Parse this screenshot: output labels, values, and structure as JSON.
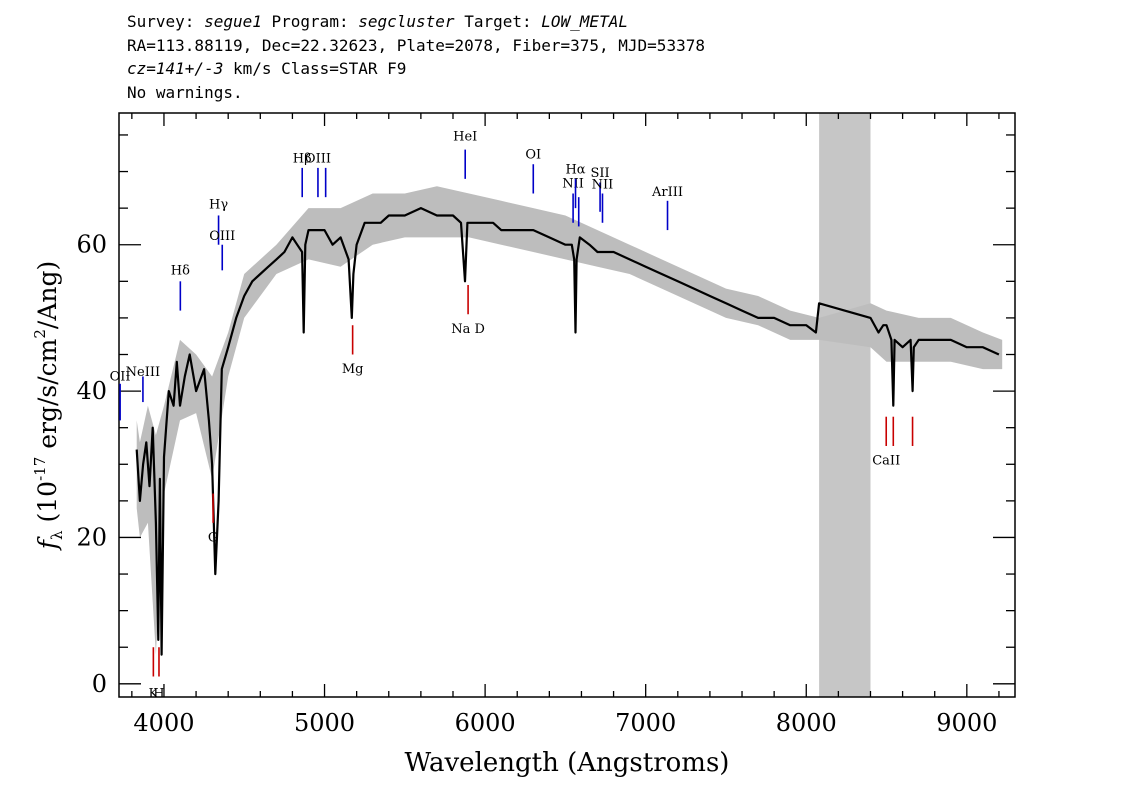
{
  "header": {
    "survey_label": "Survey:",
    "survey": "segue1",
    "program_label": "Program:",
    "program": "segcluster",
    "target_label": "Target:",
    "target": "LOW_METAL",
    "line2": "RA=113.88119, Dec=22.32623, Plate=2078, Fiber=375, MJD=53378",
    "cz": "cz=141+/-3",
    "line3_rest": "km/s Class=STAR F9",
    "line4": "No warnings."
  },
  "chart_data": {
    "type": "line",
    "title": "",
    "xlabel": "Wavelength (Angstroms)",
    "ylabel_prefix": "f",
    "ylabel_sub": "λ",
    "ylabel_unit": "(10",
    "ylabel_exp": "-17",
    "ylabel_rest": "erg/s/cm",
    "ylabel_exp2": "2",
    "ylabel_tail": "/Ang)",
    "xlim": [
      3720,
      9300
    ],
    "ylim": [
      -1.8,
      78
    ],
    "xticks": [
      "4000",
      "5000",
      "6000",
      "7000",
      "8000",
      "9000"
    ],
    "yticks": [
      "0",
      "20",
      "40",
      "60"
    ],
    "masked_region": [
      8080,
      8400
    ],
    "masked_color": "#c6c6c6",
    "flux_color": "#000000",
    "error_color": "#bdbdbd",
    "emission_color": "#0000c8",
    "absorption_color": "#c80000",
    "spectrum": {
      "x": [
        3830,
        3850,
        3870,
        3890,
        3910,
        3930,
        3950,
        3965,
        3975,
        3985,
        4000,
        4030,
        4060,
        4080,
        4100,
        4130,
        4160,
        4200,
        4250,
        4280,
        4300,
        4320,
        4340,
        4360,
        4400,
        4450,
        4500,
        4550,
        4600,
        4650,
        4700,
        4750,
        4800,
        4830,
        4860,
        4870,
        4880,
        4900,
        4950,
        5000,
        5050,
        5100,
        5150,
        5170,
        5180,
        5200,
        5250,
        5300,
        5350,
        5400,
        5500,
        5600,
        5700,
        5800,
        5850,
        5875,
        5890,
        5900,
        5950,
        6000,
        6050,
        6100,
        6200,
        6300,
        6400,
        6500,
        6540,
        6555,
        6563,
        6570,
        6590,
        6650,
        6700,
        6800,
        6900,
        7000,
        7100,
        7200,
        7300,
        7400,
        7500,
        7600,
        7700,
        7800,
        7900,
        8000,
        8060,
        8080,
        8400,
        8450,
        8480,
        8500,
        8530,
        8542,
        8550,
        8600,
        8650,
        8662,
        8670,
        8700,
        8800,
        8900,
        9000,
        9100,
        9200
      ],
      "y": [
        32,
        25,
        30,
        33,
        27,
        35,
        22,
        6,
        28,
        4,
        31,
        40,
        38,
        44,
        38,
        42,
        45,
        40,
        43,
        36,
        30,
        15,
        25,
        43,
        46,
        50,
        53,
        55,
        56,
        57,
        58,
        59,
        61,
        60,
        59,
        48,
        60,
        62,
        62,
        62,
        60,
        61,
        58,
        50,
        56,
        60,
        63,
        63,
        63,
        64,
        64,
        65,
        64,
        64,
        63,
        55,
        63,
        63,
        63,
        63,
        63,
        62,
        62,
        62,
        61,
        60,
        60,
        58,
        48,
        58,
        61,
        60,
        59,
        59,
        58,
        57,
        56,
        55,
        54,
        53,
        52,
        51,
        50,
        50,
        49,
        49,
        48,
        52,
        50,
        48,
        49,
        49,
        47,
        38,
        47,
        46,
        47,
        40,
        46,
        47,
        47,
        47,
        46,
        46,
        45
      ]
    },
    "error_band": {
      "x": [
        3830,
        3850,
        3900,
        3950,
        4000,
        4100,
        4200,
        4300,
        4400,
        4500,
        4700,
        4900,
        5100,
        5300,
        5500,
        5700,
        5900,
        6100,
        6300,
        6500,
        6700,
        6900,
        7100,
        7300,
        7500,
        7700,
        7900,
        8080,
        8400,
        8500,
        8700,
        8900,
        9100,
        9220
      ],
      "lower": [
        24,
        20,
        22,
        4,
        26,
        36,
        37,
        28,
        42,
        50,
        56,
        58,
        57,
        60,
        61,
        61,
        61,
        60,
        59,
        58,
        57,
        56,
        54,
        52,
        50,
        49,
        47,
        47,
        46,
        44,
        44,
        44,
        43,
        43
      ],
      "upper": [
        36,
        33,
        38,
        34,
        38,
        47,
        45,
        42,
        48,
        56,
        60,
        65,
        65,
        67,
        67,
        68,
        67,
        66,
        65,
        64,
        62,
        60,
        58,
        56,
        54,
        53,
        51,
        50,
        52,
        51,
        50,
        50,
        48,
        47
      ]
    },
    "line_markers": [
      {
        "label": "OII",
        "x": 3727,
        "y1": 36,
        "y2": 41,
        "kind": "emission",
        "label_y": 42
      },
      {
        "label": "NeIII",
        "x": 3869,
        "y1": 38.5,
        "y2": 42,
        "kind": "emission",
        "label_y": 42.6
      },
      {
        "label": "Hδ",
        "x": 4102,
        "y1": 51,
        "y2": 55,
        "kind": "emission",
        "label_y": 56.5
      },
      {
        "label": "Hγ",
        "x": 4340,
        "y1": 60,
        "y2": 64,
        "kind": "emission",
        "label_y": 65.5
      },
      {
        "label": "OIII",
        "x": 4363,
        "y1": 56.5,
        "y2": 60,
        "kind": "emission",
        "label_y": 61.2
      },
      {
        "label": "Hβ",
        "x": 4861,
        "y1": 66.5,
        "y2": 70.5,
        "kind": "emission",
        "label_y": 71.8
      },
      {
        "label": "OIII",
        "x": 4959,
        "y1": 66.5,
        "y2": 70.5,
        "kind": "emission",
        "label_y": 71.8
      },
      {
        "label": "",
        "x": 5007,
        "y1": 66.5,
        "y2": 70.5,
        "kind": "emission",
        "label_y": 0
      },
      {
        "label": "HeI",
        "x": 5876,
        "y1": 69,
        "y2": 73,
        "kind": "emission",
        "label_y": 74.8
      },
      {
        "label": "OI",
        "x": 6300,
        "y1": 67,
        "y2": 71,
        "kind": "emission",
        "label_y": 72.3
      },
      {
        "label": "NII",
        "x": 6548,
        "y1": 63,
        "y2": 67,
        "kind": "emission",
        "label_y": 68.4
      },
      {
        "label": "Hα",
        "x": 6563,
        "y1": 65,
        "y2": 69,
        "kind": "emission",
        "label_y": 70.3
      },
      {
        "label": "",
        "x": 6583,
        "y1": 62.5,
        "y2": 66.5,
        "kind": "emission",
        "label_y": 0
      },
      {
        "label": "SII",
        "x": 6716,
        "y1": 64.5,
        "y2": 68.5,
        "kind": "emission",
        "label_y": 69.8
      },
      {
        "label": "NII",
        "x": 6731,
        "y1": 63,
        "y2": 67,
        "kind": "emission",
        "label_y": 68.2
      },
      {
        "label": "ArIII",
        "x": 7136,
        "y1": 62,
        "y2": 66,
        "kind": "emission",
        "label_y": 67.2
      },
      {
        "label": "K",
        "x": 3934,
        "y1": 1,
        "y2": 5,
        "kind": "absorption",
        "label_y": -1.3
      },
      {
        "label": "H",
        "x": 3969,
        "y1": 1,
        "y2": 5,
        "kind": "absorption",
        "label_y": -1.3
      },
      {
        "label": "G",
        "x": 4306,
        "y1": 22,
        "y2": 26,
        "kind": "absorption",
        "label_y": 20
      },
      {
        "label": "Mg",
        "x": 5175,
        "y1": 45,
        "y2": 49,
        "kind": "absorption",
        "label_y": 43
      },
      {
        "label": "Na D",
        "x": 5894,
        "y1": 50.5,
        "y2": 54.5,
        "kind": "absorption",
        "label_y": 48.5
      },
      {
        "label": "CaII",
        "x": 8498,
        "y1": 32.5,
        "y2": 36.5,
        "kind": "absorption",
        "label_y": 30.5
      },
      {
        "label": "",
        "x": 8542,
        "y1": 32.5,
        "y2": 36.5,
        "kind": "absorption",
        "label_y": 0
      },
      {
        "label": "",
        "x": 8662,
        "y1": 32.5,
        "y2": 36.5,
        "kind": "absorption",
        "label_y": 0
      }
    ]
  }
}
